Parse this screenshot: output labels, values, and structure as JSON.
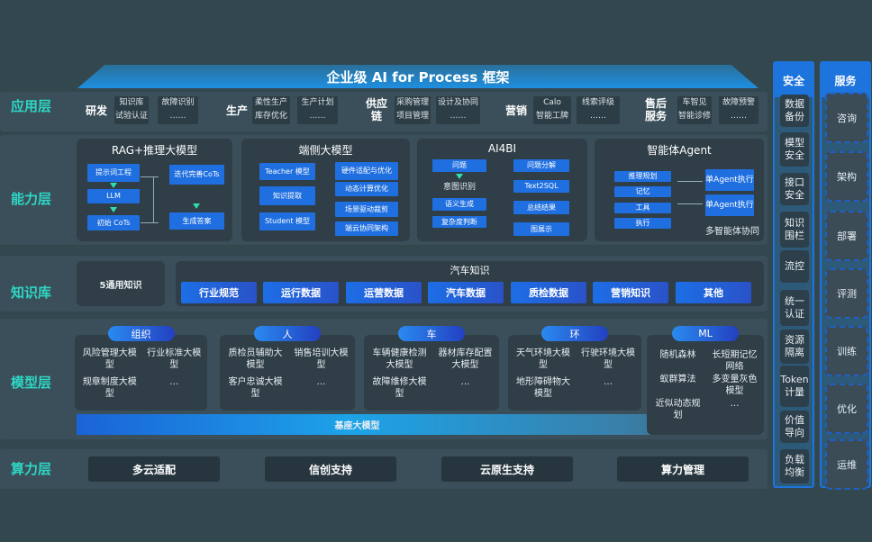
{
  "banner": "企业级 AI for Process 框架",
  "layers": {
    "app": "应用层",
    "capability": "能力层",
    "knowledge": "知识库",
    "model": "模型层",
    "compute": "算力层"
  },
  "app_groups": [
    {
      "name": "研发",
      "items": [
        "知识库",
        "试验认证",
        "故障识别",
        "……"
      ]
    },
    {
      "name": "生产",
      "items": [
        "柔性生产",
        "库存优化",
        "生产计划",
        "……"
      ]
    },
    {
      "name": "供应链",
      "items": [
        "采购管理",
        "项目管理",
        "设计及协同",
        "……"
      ]
    },
    {
      "name": "营销",
      "items": [
        "Calo",
        "智能工牌",
        "线索评级",
        "……"
      ]
    },
    {
      "name": "售后服务",
      "items": [
        "车智见",
        "智能诊修",
        "故障预警",
        "……"
      ]
    }
  ],
  "capability": {
    "rag": {
      "title": "RAG+推理大模型",
      "items": [
        "提示词工程",
        "LLM",
        "初始 CoTs",
        "迭代完善CoTs",
        "生成答案"
      ]
    },
    "edge": {
      "title": "端侧大模型",
      "items": [
        "Teacher 模型",
        "知识提取",
        "Student 模型",
        "硬件适配与优化",
        "动态计算优化",
        "场景驱动裁剪",
        "端云协同架构"
      ]
    },
    "ai4bi": {
      "title": "AI4BI",
      "items": [
        "问题",
        "意图识别",
        "语义生成",
        "复杂度判断",
        "问题分解",
        "Text2SQL",
        "总结结果",
        "图展示"
      ]
    },
    "agent": {
      "title": "智能体Agent",
      "items": [
        "推理规划",
        "记忆",
        "工具",
        "执行",
        "单Agent执行",
        "单Agent执行",
        "多智能体协同"
      ]
    }
  },
  "knowledge": {
    "general": "5通用知识",
    "auto_title": "汽车知识",
    "chips": [
      "行业规范",
      "运行数据",
      "运营数据",
      "汽车数据",
      "质检数据",
      "营销知识",
      "其他"
    ]
  },
  "model": {
    "groups": [
      {
        "name": "组织",
        "items": [
          "风险管理大模型",
          "行业标准大模型",
          "规章制度大模型",
          "…"
        ]
      },
      {
        "name": "人",
        "items": [
          "质检员辅助大模型",
          "销售培训大模型",
          "客户忠诚大模型",
          "…"
        ]
      },
      {
        "name": "车",
        "items": [
          "车辆健康检测大模型",
          "器材库存配置大模型",
          "故障维修大模型",
          "…"
        ]
      },
      {
        "name": "环",
        "items": [
          "天气环境大模型",
          "行驶环境大模型",
          "地形障碍物大模型",
          "…"
        ]
      },
      {
        "name": "ML",
        "items": [
          "随机森林",
          "长短期记忆网络",
          "蚁群算法",
          "多变量灰色模型",
          "近似动态规划",
          "…"
        ]
      }
    ],
    "base": "基座大模型"
  },
  "compute": [
    "多云适配",
    "信创支持",
    "云原生支持",
    "算力管理"
  ],
  "security": {
    "title": "安全",
    "items": [
      "数据备份",
      "模型安全",
      "接口安全",
      "知识围栏",
      "流控",
      "统一认证",
      "资源隔离",
      "Token计量",
      "价值导向",
      "负载均衡"
    ]
  },
  "services": {
    "title": "服务",
    "items": [
      "咨询",
      "架构",
      "部署",
      "评测",
      "训练",
      "优化",
      "运维"
    ]
  }
}
